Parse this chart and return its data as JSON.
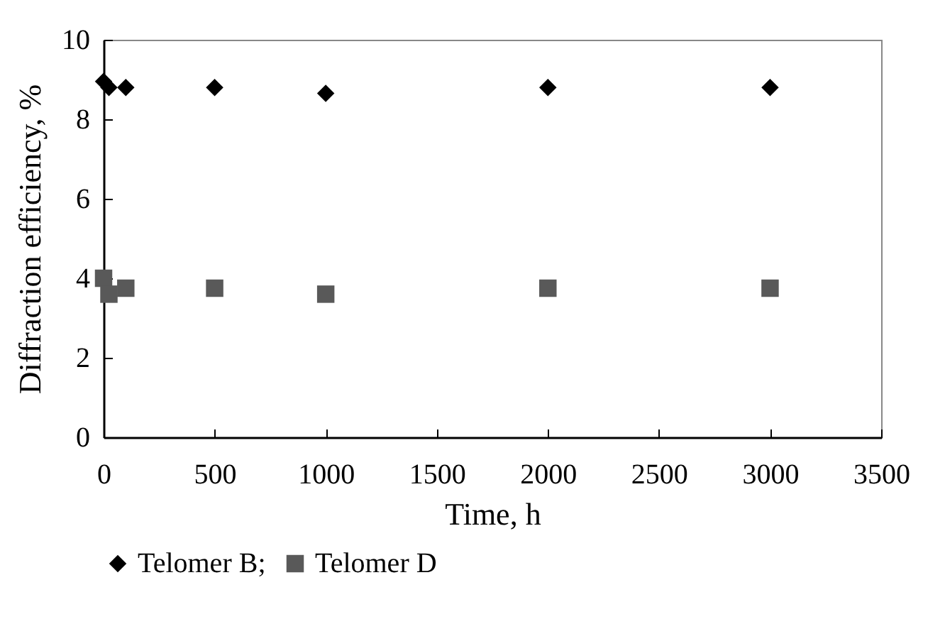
{
  "chart_data": {
    "type": "scatter",
    "xlabel": "Time, h",
    "ylabel": "Diffraction efficiency, %",
    "x": [
      0,
      24,
      100,
      500,
      1000,
      2000,
      3000
    ],
    "series": [
      {
        "name": "Telomer B;",
        "color": "#000000",
        "marker": "diamond",
        "values": [
          8.95,
          8.8,
          8.8,
          8.8,
          8.65,
          8.8,
          8.8
        ]
      },
      {
        "name": "Telomer D",
        "color": "#595959",
        "marker": "square",
        "values": [
          4.0,
          3.6,
          3.75,
          3.75,
          3.6,
          3.75,
          3.75
        ]
      }
    ],
    "xlim": [
      0,
      3500
    ],
    "xticks": [
      0,
      500,
      1000,
      1500,
      2000,
      2500,
      3000,
      3500
    ],
    "ylim": [
      0,
      10
    ],
    "yticks": [
      0,
      2,
      4,
      6,
      8,
      10
    ],
    "grid": false,
    "legend": "bottom"
  }
}
